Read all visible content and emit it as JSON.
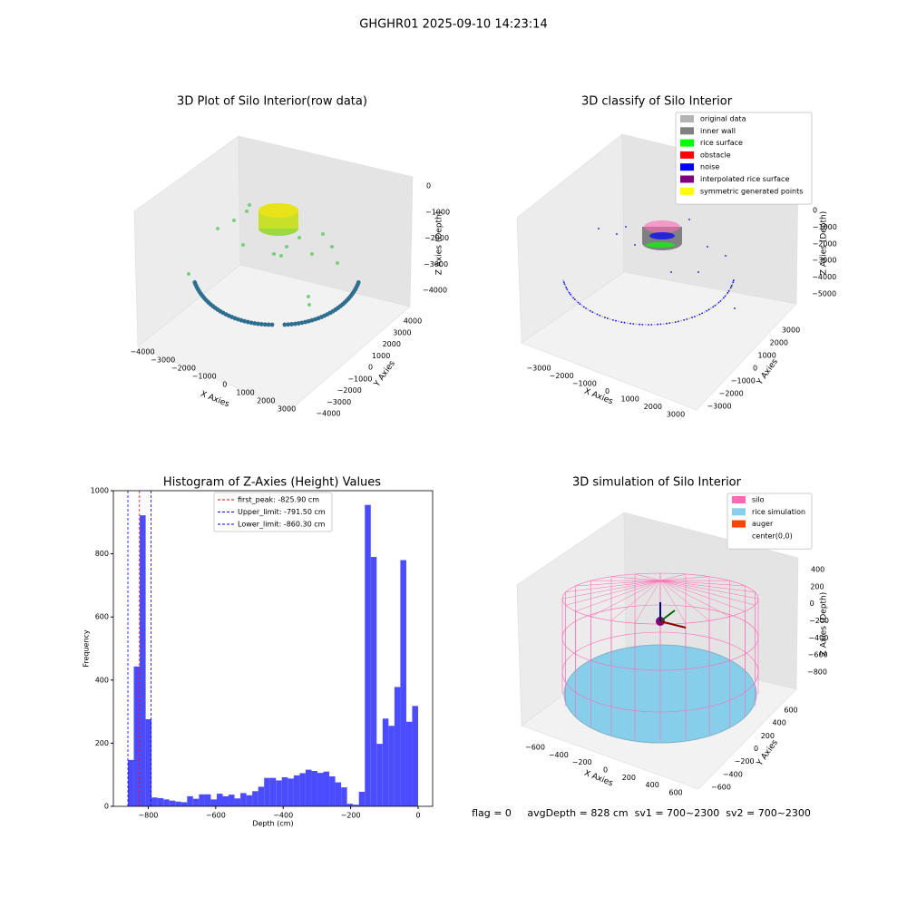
{
  "title": "GHGHR01 2025-09-10 14:23:14",
  "footer": "flag = 0     avgDepth = 828 cm  sv1 = 700~2300  sv2 = 700~2300",
  "chart_data": [
    {
      "type": "scatter3d",
      "title": "3D Plot of Silo Interior(row data)",
      "x_label": "X Axies",
      "y_label": "Y Axies",
      "z_label": "Z Axies (Depth)",
      "xticks": [
        {
          "value": -4000,
          "label": "−4000"
        },
        {
          "value": -3000,
          "label": "−3000"
        },
        {
          "value": -2000,
          "label": "−2000"
        },
        {
          "value": -1000,
          "label": "−1000"
        },
        0,
        1000,
        2000,
        3000
      ],
      "yticks": [
        {
          "value": -4000,
          "label": "−4000"
        },
        {
          "value": -3000,
          "label": "−3000"
        },
        {
          "value": -2000,
          "label": "−2000"
        },
        {
          "value": -1000,
          "label": "−1000"
        },
        0,
        1000,
        2000,
        3000,
        4000
      ],
      "zticks": [
        0,
        {
          "value": -1000,
          "label": "−1000"
        },
        {
          "value": -2000,
          "label": "−2000"
        },
        {
          "value": -3000,
          "label": "−3000"
        },
        {
          "value": -4000,
          "label": "−4000"
        }
      ]
    },
    {
      "type": "scatter3d",
      "title": "3D classify of Silo Interior",
      "x_label": "X Axies",
      "y_label": "Y Axies",
      "z_label": "Z Axies (Depth)",
      "xticks": [
        {
          "value": -3000,
          "label": "−3000"
        },
        {
          "value": -2000,
          "label": "−2000"
        },
        {
          "value": -1000,
          "label": "−1000"
        },
        0,
        1000,
        2000,
        3000
      ],
      "yticks": [
        {
          "value": -3000,
          "label": "−3000"
        },
        {
          "value": -2000,
          "label": "−2000"
        },
        {
          "value": -1000,
          "label": "−1000"
        },
        0,
        1000,
        2000,
        3000
      ],
      "zticks": [
        0,
        {
          "value": -1000,
          "label": "−1000"
        },
        {
          "value": -2000,
          "label": "−2000"
        },
        {
          "value": -3000,
          "label": "−3000"
        },
        {
          "value": -4000,
          "label": "−4000"
        },
        {
          "value": -5000,
          "label": "−5000"
        }
      ],
      "legend_position": "upper right",
      "legend": [
        {
          "name": "original data",
          "color": "#b3b3b3"
        },
        {
          "name": "inner wall",
          "color": "#808080"
        },
        {
          "name": "rice surface",
          "color": "#00ff00"
        },
        {
          "name": "obstacle",
          "color": "#ff0000"
        },
        {
          "name": "noise",
          "color": "#0000ff"
        },
        {
          "name": "interpolated rice surface",
          "color": "#800080"
        },
        {
          "name": "symmetric generated points",
          "color": "#ffff00"
        }
      ]
    },
    {
      "type": "histogram",
      "title": "Histogram of Z-Axies (Height) Values",
      "x_label": "Depth (cm)",
      "y_label": "Frequency",
      "color": "#4c4cff",
      "bins": [
        -860.3,
        -842.7,
        -825.2,
        -807.6,
        -790.1,
        -772.5,
        -754.9,
        -737.4,
        -719.8,
        -702.3,
        -684.7,
        -667.2,
        -649.6,
        -632.0,
        -614.5,
        -596.9,
        -579.4,
        -561.8,
        -544.3,
        -526.7,
        -509.1,
        -491.6,
        -474.0,
        -456.5,
        -438.9,
        -421.4,
        -403.8,
        -386.2,
        -368.7,
        -351.1,
        -333.6,
        -316.0,
        -298.5,
        -280.9,
        -263.3,
        -245.8,
        -228.2,
        -210.7,
        -193.1,
        -175.6,
        -158.0,
        -140.4,
        -122.9,
        -105.3,
        -87.8,
        -70.2,
        -52.7,
        -35.1,
        -17.6,
        0
      ],
      "values": [
        147,
        443,
        922,
        276,
        28,
        26,
        22,
        18,
        15,
        13,
        32,
        24,
        38,
        38,
        22,
        40,
        32,
        37,
        25,
        42,
        35,
        48,
        62,
        90,
        90,
        82,
        92,
        88,
        98,
        105,
        116,
        112,
        106,
        110,
        95,
        76,
        60,
        8,
        5,
        46,
        955,
        790,
        198,
        278,
        255,
        378,
        780,
        268,
        318
      ],
      "xlim": [
        -903.3,
        43
      ],
      "ylim": [
        0,
        1000
      ],
      "xticks": [
        {
          "value": -800,
          "label": "−800"
        },
        {
          "value": -600,
          "label": "−600"
        },
        {
          "value": -400,
          "label": "−400"
        },
        {
          "value": -200,
          "label": "−200"
        },
        0
      ],
      "yticks": [
        0,
        200,
        400,
        600,
        800,
        1000
      ],
      "legend_position": "upper center",
      "vlines": [
        {
          "name": "first_peak: -825.90 cm",
          "value": -825.9,
          "color": "#ff0000"
        },
        {
          "name": "Upper_limit: -791.50 cm",
          "value": -791.5,
          "color": "#0000ff"
        },
        {
          "name": "Lower_limit: -860.30 cm",
          "value": -860.3,
          "color": "#0000ff"
        }
      ]
    },
    {
      "type": "surface3d",
      "title": "3D simulation of Silo Interior",
      "x_label": "X Axies",
      "y_label": "Y Axies",
      "z_label": "Z Axies (Depth)",
      "xticks": [
        {
          "value": -600,
          "label": "−600"
        },
        {
          "value": -400,
          "label": "−400"
        },
        {
          "value": -200,
          "label": "−200"
        },
        0,
        200,
        400,
        600
      ],
      "yticks": [
        {
          "value": -600,
          "label": "−600"
        },
        {
          "value": -400,
          "label": "−400"
        },
        {
          "value": -200,
          "label": "−200"
        },
        0,
        200,
        400,
        600
      ],
      "zticks": [
        400,
        200,
        0,
        {
          "value": -200,
          "label": "−200"
        },
        {
          "value": -400,
          "label": "−400"
        },
        {
          "value": -600,
          "label": "−600"
        },
        {
          "value": -800,
          "label": "−800"
        }
      ],
      "legend_position": "upper right",
      "legend": [
        {
          "name": "silo",
          "color": "#ff69b4"
        },
        {
          "name": "rice simulation",
          "color": "#87ceeb"
        },
        {
          "name": "auger",
          "color": "#ff4500"
        },
        {
          "name": "center(0,0)",
          "color": "#ffffff"
        }
      ]
    }
  ]
}
